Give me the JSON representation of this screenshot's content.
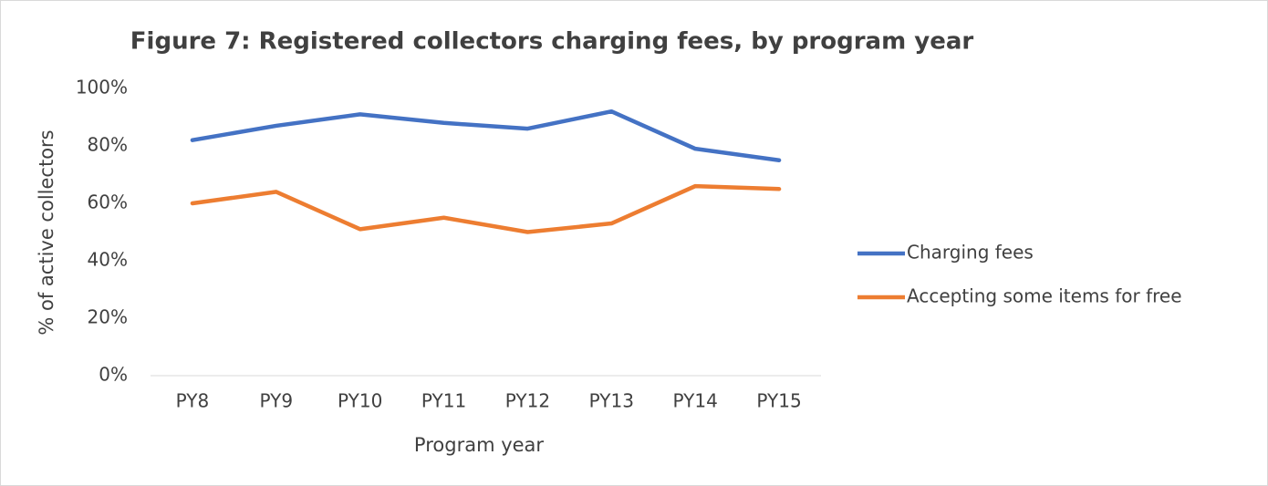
{
  "chart_data": {
    "type": "line",
    "title": "Figure 7: Registered collectors charging fees, by program year",
    "x_label": "Program year",
    "y_label": "% of active collectors",
    "categories": [
      "PY8",
      "PY9",
      "PY10",
      "PY11",
      "PY12",
      "PY13",
      "PY14",
      "PY15"
    ],
    "series": [
      {
        "name": "Charging fees",
        "color": "#4472c4",
        "values": [
          82,
          87,
          91,
          88,
          86,
          92,
          79,
          75
        ]
      },
      {
        "name": "Accepting some items for free",
        "color": "#ed7d31",
        "values": [
          60,
          64,
          51,
          55,
          50,
          53,
          66,
          65
        ]
      }
    ],
    "ylim": [
      0,
      100
    ],
    "yticks": [
      {
        "value": 0,
        "label": "0%"
      },
      {
        "value": 20,
        "label": "20%"
      },
      {
        "value": 40,
        "label": "40%"
      },
      {
        "value": 60,
        "label": "60%"
      },
      {
        "value": 80,
        "label": "80%"
      },
      {
        "value": 100,
        "label": "100%"
      }
    ],
    "grid": false,
    "legend": "right"
  }
}
